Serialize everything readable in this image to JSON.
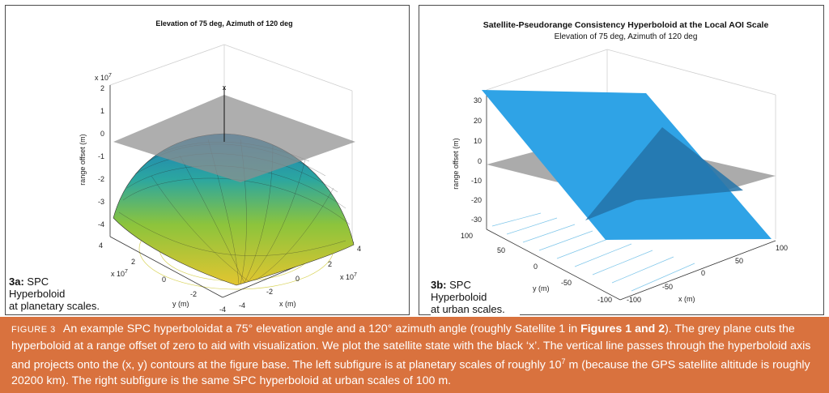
{
  "panel_a": {
    "title": "Elevation of 75 deg, Azimuth of 120 deg",
    "ylabel": "range offset (m)",
    "exp_z": "x 10",
    "exp_z_power": "7",
    "exp_x": "x 10",
    "exp_x_power": "7",
    "exp_y": "x 10",
    "exp_y_power": "7",
    "z_ticks": [
      "2",
      "1",
      "0",
      "-1",
      "-2",
      "-3",
      "-4"
    ],
    "y_ticks": [
      "4",
      "2",
      "0",
      "-2",
      "-4"
    ],
    "x_ticks": [
      "-4",
      "-2",
      "0",
      "2",
      "4"
    ],
    "x_axis_label": "x (m)",
    "y_axis_label": "y (m)",
    "satellite_marker": "x",
    "caption_bold": "3a:",
    "caption_rest_line1": "SPC Hyperboloid",
    "caption_line2": "at planetary scales."
  },
  "panel_b": {
    "title": "Satellite-Pseudorange Consistency Hyperboloid at the Local AOI Scale",
    "subtitle": "Elevation of 75 deg, Azimuth of 120 deg",
    "ylabel": "range offset (m)",
    "z_ticks": [
      "30",
      "20",
      "10",
      "0",
      "-10",
      "-20",
      "-30"
    ],
    "y_ticks": [
      "100",
      "50",
      "0",
      "-50",
      "-100"
    ],
    "x_ticks": [
      "-100",
      "-50",
      "0",
      "50",
      "100"
    ],
    "x_axis_label": "x (m)",
    "y_axis_label": "y (m)",
    "caption_bold": "3b:",
    "caption_rest_line1": "SPC Hyperboloid",
    "caption_line2": "at urban scales."
  },
  "figure_caption": {
    "label": "Figure 3",
    "text_1": "An example SPC hyperboloidat a 75° elevation angle and a 120° azimuth angle (roughly Satellite 1 in",
    "bold_ref": "Figures 1 and 2",
    "text_2": "). The grey plane cuts the hyperboloid at a range offset of zero to aid with visualization. We plot the satellite state with the black ‘x’. The vertical line passes through the hyperboloid axis and projects onto the (x, y) contours at the figure base. The left subfigure is at planetary scales of roughly 10",
    "sup": "7",
    "text_3": "m (because the GPS satellite altitude is roughly 20200 km). The right subfigure is the same SPC hyperboloid at urban scales of 100 m."
  },
  "colors": {
    "orange_band": "#d9723e",
    "surface_top": "#2a8fc0",
    "surface_bottom": "#e8c832",
    "plane_grey": "#9a9a9a",
    "plane_blue": "#2f9fe0"
  }
}
